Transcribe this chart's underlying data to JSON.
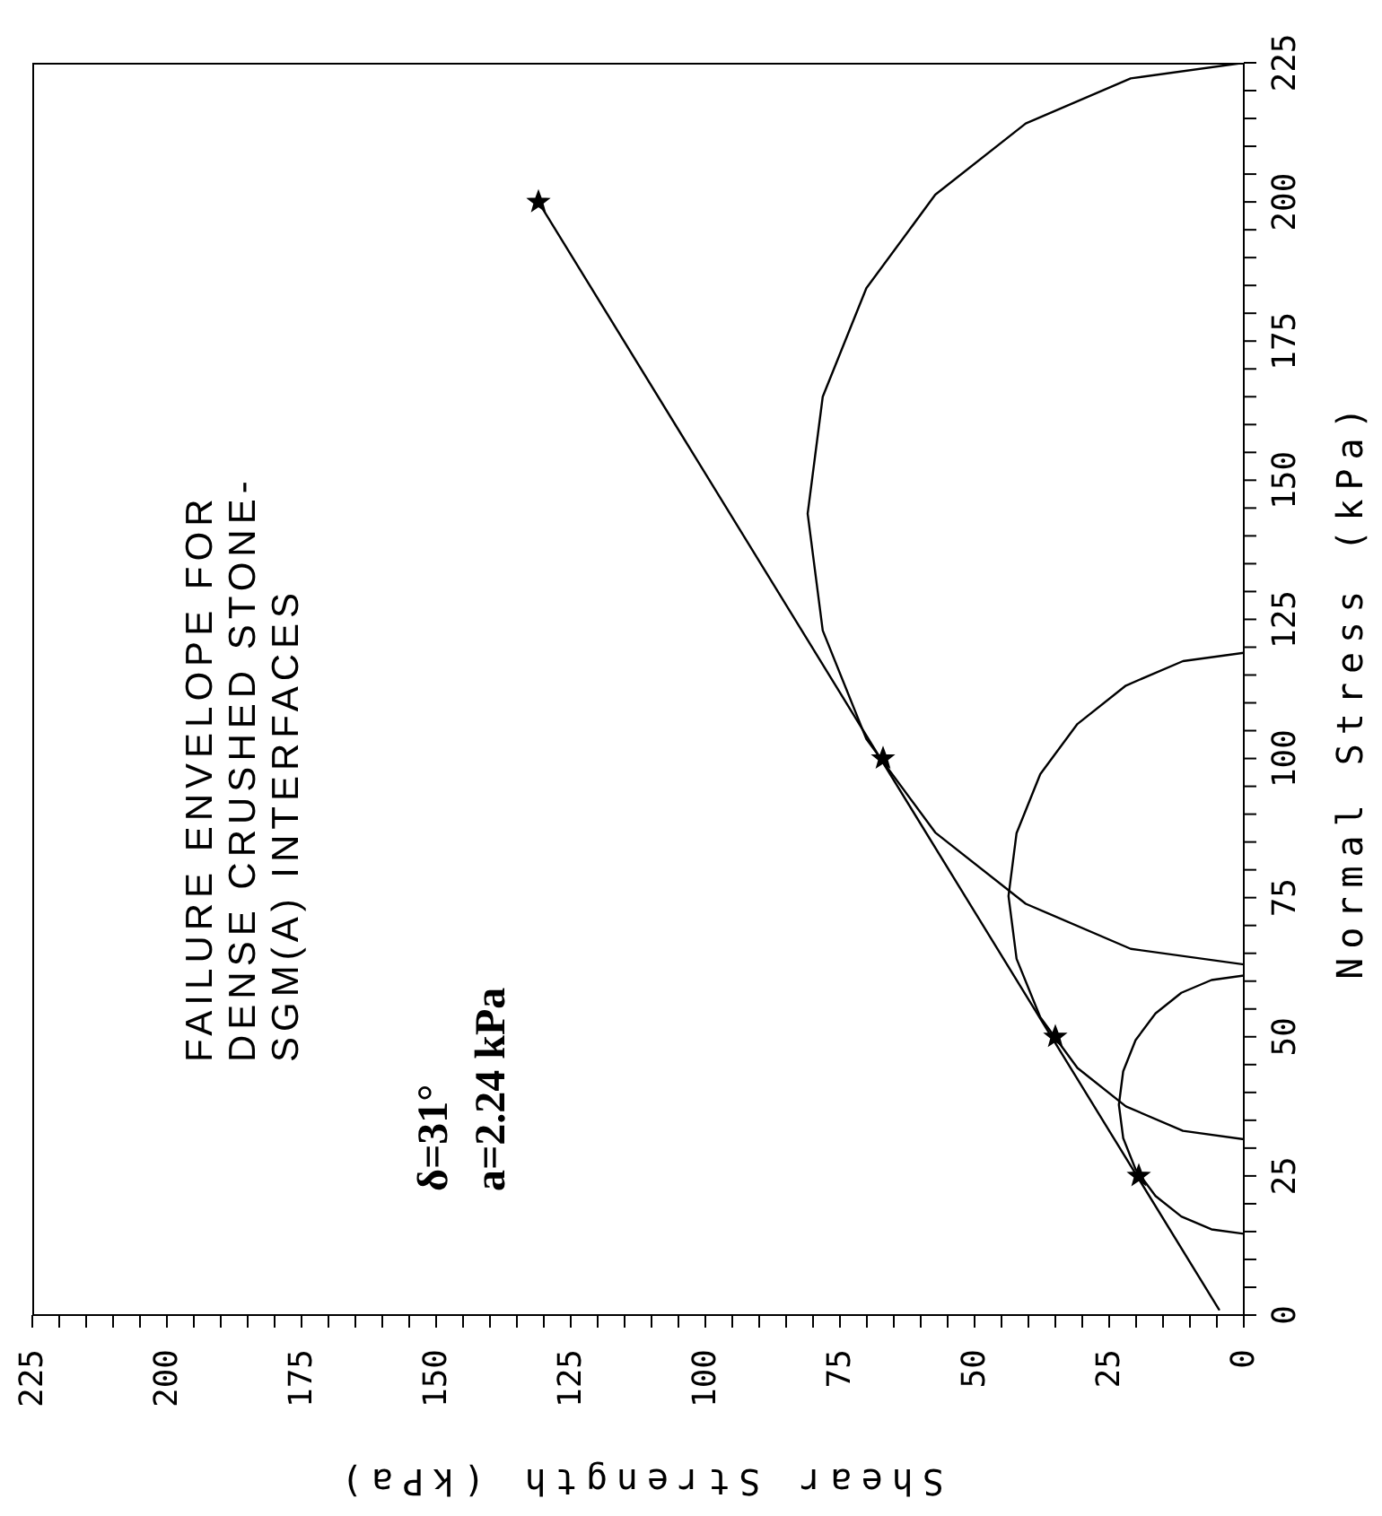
{
  "chart_data": {
    "type": "line",
    "title": "FAILURE ENVELOPE FOR\nDENSE CRUSHED STONE-\nSGM(A) INTERFACES",
    "xlabel": "Shear Strength (kPa)",
    "ylabel": "Normal Stress (kPa)",
    "annotations": [
      "δ=31°",
      "a=2.24 kPa"
    ],
    "xlim": [
      225,
      0
    ],
    "ylim": [
      0,
      225
    ],
    "xticks": [
      0,
      {
        "value": 5,
        "label": null
      },
      {
        "value": 10,
        "label": null
      },
      {
        "value": 15,
        "label": null
      },
      {
        "value": 20,
        "label": null
      },
      25,
      {
        "value": 30,
        "label": null
      },
      {
        "value": 35,
        "label": null
      },
      {
        "value": 40,
        "label": null
      },
      {
        "value": 45,
        "label": null
      },
      50,
      {
        "value": 55,
        "label": null
      },
      {
        "value": 60,
        "label": null
      },
      {
        "value": 65,
        "label": null
      },
      {
        "value": 70,
        "label": null
      },
      75,
      {
        "value": 80,
        "label": null
      },
      {
        "value": 85,
        "label": null
      },
      {
        "value": 90,
        "label": null
      },
      {
        "value": 95,
        "label": null
      },
      100,
      {
        "value": 105,
        "label": null
      },
      {
        "value": 110,
        "label": null
      },
      {
        "value": 115,
        "label": null
      },
      {
        "value": 120,
        "label": null
      },
      125,
      {
        "value": 130,
        "label": null
      },
      {
        "value": 135,
        "label": null
      },
      {
        "value": 140,
        "label": null
      },
      {
        "value": 145,
        "label": null
      },
      150,
      {
        "value": 155,
        "label": null
      },
      {
        "value": 160,
        "label": null
      },
      {
        "value": 165,
        "label": null
      },
      {
        "value": 170,
        "label": null
      },
      175,
      {
        "value": 180,
        "label": null
      },
      {
        "value": 185,
        "label": null
      },
      {
        "value": 190,
        "label": null
      },
      {
        "value": 195,
        "label": null
      },
      200,
      {
        "value": 205,
        "label": null
      },
      {
        "value": 210,
        "label": null
      },
      {
        "value": 215,
        "label": null
      },
      {
        "value": 220,
        "label": null
      },
      225
    ],
    "yticks": [
      0,
      {
        "value": 5,
        "label": null
      },
      {
        "value": 10,
        "label": null
      },
      {
        "value": 15,
        "label": null
      },
      {
        "value": 20,
        "label": null
      },
      25,
      {
        "value": 30,
        "label": null
      },
      {
        "value": 35,
        "label": null
      },
      {
        "value": 40,
        "label": null
      },
      {
        "value": 45,
        "label": null
      },
      50,
      {
        "value": 55,
        "label": null
      },
      {
        "value": 60,
        "label": null
      },
      {
        "value": 65,
        "label": null
      },
      {
        "value": 70,
        "label": null
      },
      75,
      {
        "value": 80,
        "label": null
      },
      {
        "value": 85,
        "label": null
      },
      {
        "value": 90,
        "label": null
      },
      {
        "value": 95,
        "label": null
      },
      100,
      {
        "value": 105,
        "label": null
      },
      {
        "value": 110,
        "label": null
      },
      {
        "value": 115,
        "label": null
      },
      {
        "value": 120,
        "label": null
      },
      125,
      {
        "value": 130,
        "label": null
      },
      {
        "value": 135,
        "label": null
      },
      {
        "value": 140,
        "label": null
      },
      {
        "value": 145,
        "label": null
      },
      150,
      {
        "value": 155,
        "label": null
      },
      {
        "value": 160,
        "label": null
      },
      {
        "value": 165,
        "label": null
      },
      {
        "value": 170,
        "label": null
      },
      175,
      {
        "value": 180,
        "label": null
      },
      {
        "value": 185,
        "label": null
      },
      {
        "value": 190,
        "label": null
      },
      {
        "value": 195,
        "label": null
      },
      200,
      {
        "value": 205,
        "label": null
      },
      {
        "value": 210,
        "label": null
      },
      {
        "value": 215,
        "label": null
      },
      {
        "value": 220,
        "label": null
      },
      225
    ],
    "series": [
      {
        "type": "line",
        "color": "#000000",
        "marker": "none",
        "x": [
          4.6,
          131
        ],
        "values": [
          1,
          200
        ]
      },
      {
        "type": "scatter",
        "color": "#000000",
        "marker": "star",
        "x": [
          19.5,
          35,
          67,
          131
        ],
        "values": [
          25,
          50,
          100,
          200
        ]
      },
      {
        "type": "line",
        "color": "#000000",
        "marker": "none",
        "x": [
          0,
          6.0,
          11.6,
          16.4,
          20.1,
          22.4,
          23.2,
          22.4,
          20.1,
          16.4,
          11.6,
          6.0,
          0
        ],
        "values": [
          14.6,
          15.4,
          17.7,
          21.4,
          26.2,
          31.8,
          37.8,
          43.8,
          49.4,
          54.2,
          57.9,
          60.2,
          61.0
        ]
      },
      {
        "type": "line",
        "color": "#000000",
        "marker": "none",
        "x": [
          0,
          11.3,
          21.9,
          30.9,
          37.8,
          42.2,
          43.7,
          42.2,
          37.8,
          30.9,
          21.9,
          11.3,
          0
        ],
        "values": [
          31.6,
          33.1,
          37.5,
          44.4,
          53.5,
          64.0,
          75.3,
          86.6,
          97.2,
          106.2,
          113.1,
          117.5,
          119.0
        ]
      },
      {
        "type": "line",
        "color": "#000000",
        "marker": "none",
        "x": [
          0,
          21.0,
          40.5,
          57.3,
          70.1,
          78.2,
          81,
          78.2,
          70.1,
          57.3,
          40.5,
          21.0,
          0
        ],
        "values": [
          63,
          65.8,
          73.9,
          86.7,
          103.5,
          123.0,
          144,
          165.0,
          184.5,
          201.3,
          214.1,
          222.2,
          225
        ]
      }
    ]
  }
}
